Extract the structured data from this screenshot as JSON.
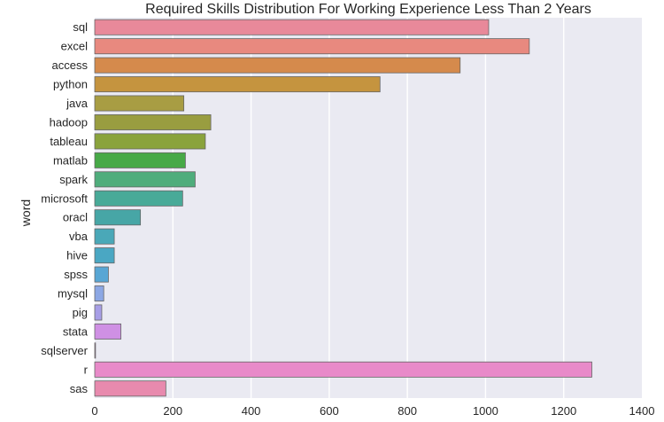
{
  "chart_data": {
    "type": "bar",
    "orientation": "horizontal",
    "title": "Required Skills Distribution For Working Experience Less Than 2 Years",
    "xlabel": "",
    "ylabel": "word",
    "xlim": [
      0,
      1400
    ],
    "xticks": [
      0,
      200,
      400,
      600,
      800,
      1000,
      1200,
      1400
    ],
    "grid": true,
    "background": "#eaeaf2",
    "gridColor": "#ffffff",
    "barEdge": "#666666",
    "categories": [
      "sql",
      "excel",
      "access",
      "python",
      "java",
      "hadoop",
      "tableau",
      "matlab",
      "spark",
      "microsoft",
      "oracl",
      "vba",
      "hive",
      "spss",
      "mysql",
      "pig",
      "stata",
      "sqlserver",
      "r",
      "sas"
    ],
    "values": [
      1008,
      1112,
      935,
      730,
      228,
      297,
      283,
      232,
      257,
      225,
      117,
      50,
      50,
      35,
      23,
      18,
      67,
      2,
      1272,
      182
    ],
    "colors": [
      "#e8899a",
      "#e8897f",
      "#d58a4c",
      "#c5943f",
      "#a89d43",
      "#999d40",
      "#8aa33c",
      "#47a947",
      "#4fad7c",
      "#48aa98",
      "#47a6a6",
      "#4aa8b8",
      "#4aa7c3",
      "#58a6d4",
      "#8ca7e4",
      "#a79ee6",
      "#cf90e4",
      "#e386d5",
      "#e88ac9",
      "#e88aae"
    ]
  }
}
